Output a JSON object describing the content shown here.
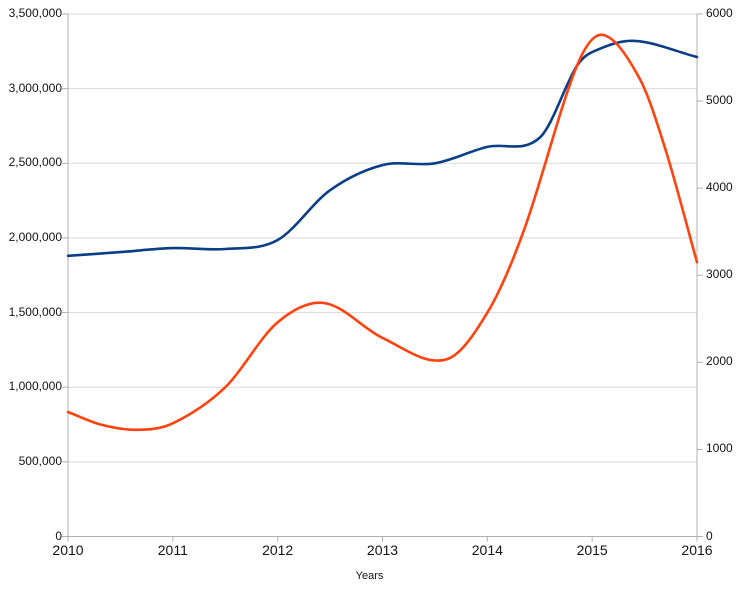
{
  "chart_data": {
    "type": "line",
    "title": "",
    "xlabel": "Years",
    "legend": "none",
    "grid": "horizontal",
    "line_style": "smooth-spline",
    "background_color": "#ffffff",
    "gridline_color": "#d9d9d9",
    "axis_line_color": "#b0b0b0",
    "label_color": "#141414",
    "x_range": [
      2010,
      2016
    ],
    "x_tick_labels": [
      "2010",
      "2011",
      "2012",
      "2013",
      "2014",
      "2015",
      "2016"
    ],
    "y_left": {
      "min": 0,
      "max": 3500000,
      "step": 500000,
      "tick_labels": [
        "3,500,000",
        "3,000,000",
        "2,500,000",
        "2,000,000",
        "1,500,000",
        "1,000,000",
        "500,000",
        "0"
      ]
    },
    "y_right": {
      "min": 0,
      "max": 6000,
      "step": 1000,
      "tick_labels": [
        "6000",
        "5000",
        "4000",
        "3000",
        "2000",
        "1000",
        "0"
      ]
    },
    "series": [
      {
        "name": "blue-series",
        "axis": "left",
        "color": "#0a3f87",
        "line_width": 2.6,
        "years": [
          2010,
          2011,
          2012,
          2013,
          2014,
          2015,
          2016
        ],
        "values": [
          1880000,
          1930000,
          1990000,
          2490000,
          2610000,
          3250000,
          3210000
        ],
        "peak": {
          "x": 2015.4,
          "value": 3320000
        },
        "curve_samples": [
          [
            2010,
            1880000
          ],
          [
            2010.5,
            1905000
          ],
          [
            2011,
            1932000
          ],
          [
            2011.5,
            1926000
          ],
          [
            2012,
            1986000
          ],
          [
            2012.5,
            2320000
          ],
          [
            2013,
            2488000
          ],
          [
            2013.5,
            2500000
          ],
          [
            2014,
            2610000
          ],
          [
            2014.5,
            2672000
          ],
          [
            2014.85,
            3147000
          ],
          [
            2015,
            3245000
          ],
          [
            2015.4,
            3320000
          ],
          [
            2016,
            3212000
          ]
        ]
      },
      {
        "name": "red-series",
        "axis": "right",
        "color": "#ff420e",
        "line_width": 2.6,
        "years": [
          2010,
          2011,
          2012,
          2013,
          2014,
          2015,
          2016
        ],
        "values": [
          1430,
          1300,
          2460,
          2280,
          2570,
          5700,
          3150
        ],
        "peak": {
          "x": 2015.1,
          "value": 5760
        },
        "curve_samples": [
          [
            2010,
            1430
          ],
          [
            2010.3,
            1290
          ],
          [
            2010.65,
            1225
          ],
          [
            2011,
            1300
          ],
          [
            2011.5,
            1715
          ],
          [
            2012,
            2460
          ],
          [
            2012.45,
            2680
          ],
          [
            2013,
            2280
          ],
          [
            2013.6,
            2030
          ],
          [
            2014,
            2570
          ],
          [
            2014.35,
            3520
          ],
          [
            2014.85,
            5390
          ],
          [
            2015.1,
            5760
          ],
          [
            2015.45,
            5265
          ],
          [
            2015.7,
            4440
          ],
          [
            2016,
            3150
          ]
        ]
      }
    ]
  }
}
